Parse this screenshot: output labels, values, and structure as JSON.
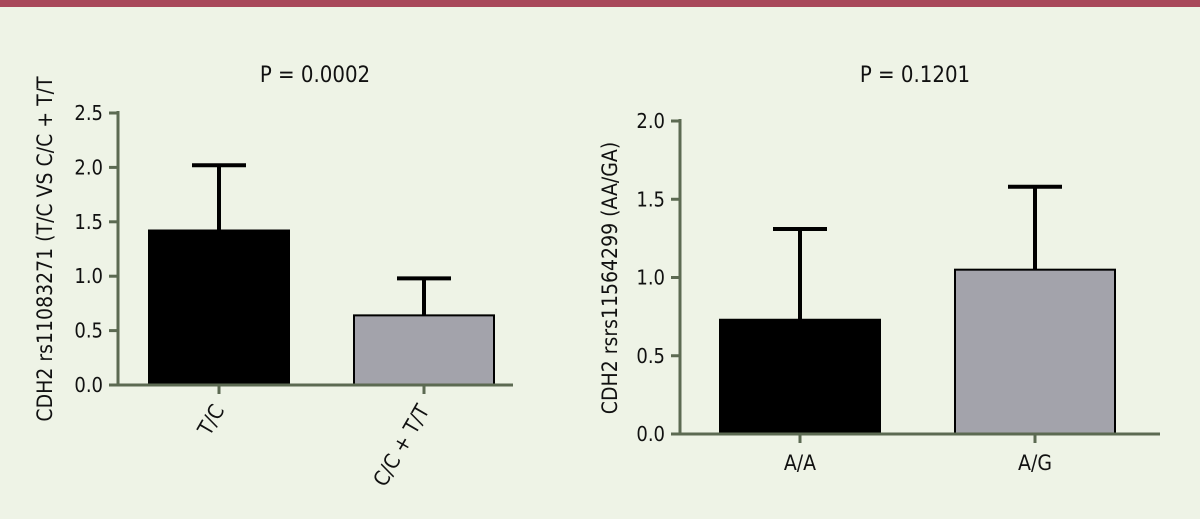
{
  "colors": {
    "background": "#eef3e6",
    "top_rule": "#a8485a",
    "axis": "#5c6a52",
    "bar_dark": "#000000",
    "bar_light": "#a3a3ab"
  },
  "chart_data": [
    {
      "type": "bar",
      "title": "P = 0.0002",
      "ylabel": "CDH2 rs11083271 (T/C VS C/C + T/T",
      "xlabel": "",
      "categories": [
        "T/C",
        "C/C + T/T"
      ],
      "values": [
        1.42,
        0.64
      ],
      "error_upper": [
        2.02,
        0.98
      ],
      "bar_colors": [
        "#000000",
        "#a3a3ab"
      ],
      "ylim": [
        0,
        2.5
      ],
      "yticks": [
        "0.0",
        "0.5",
        "1.0",
        "1.5",
        "2.0",
        "2.5"
      ],
      "xtick_rotation": "rotated",
      "grid": false
    },
    {
      "type": "bar",
      "title": "P = 0.1201",
      "ylabel": "CDH2 rsrs11564299 (AA/GA)",
      "xlabel": "",
      "categories": [
        "A/A",
        "A/G"
      ],
      "values": [
        0.73,
        1.05
      ],
      "error_upper": [
        1.31,
        1.58
      ],
      "bar_colors": [
        "#000000",
        "#a3a3ab"
      ],
      "ylim": [
        0,
        2.0
      ],
      "yticks": [
        "0.0",
        "0.5",
        "1.0",
        "1.5",
        "2.0"
      ],
      "xtick_rotation": "horizontal",
      "grid": false
    }
  ]
}
